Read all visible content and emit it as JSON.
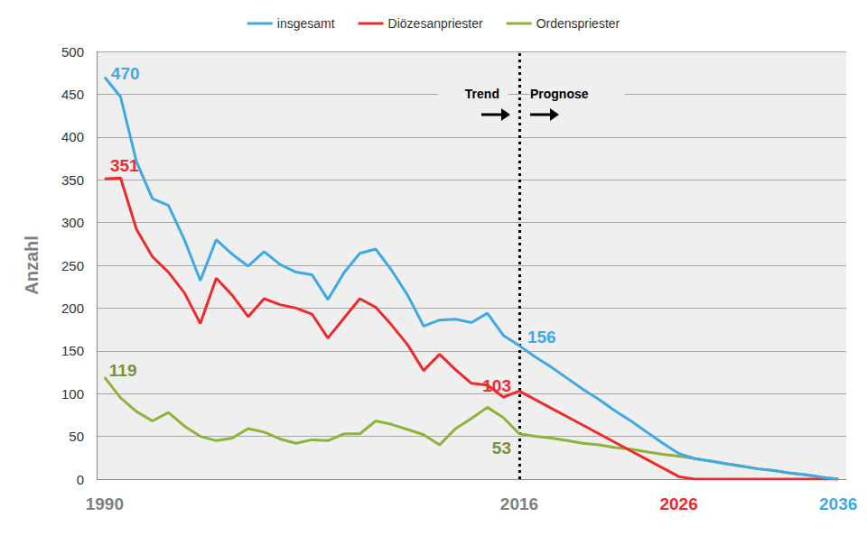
{
  "chart_data": {
    "type": "line",
    "x": [
      1990,
      1991,
      1992,
      1993,
      1994,
      1995,
      1996,
      1997,
      1998,
      1999,
      2000,
      2001,
      2002,
      2003,
      2004,
      2005,
      2006,
      2007,
      2008,
      2009,
      2010,
      2011,
      2012,
      2013,
      2014,
      2015,
      2016,
      2017,
      2018,
      2019,
      2020,
      2021,
      2022,
      2023,
      2024,
      2025,
      2026,
      2027,
      2028,
      2029,
      2030,
      2031,
      2032,
      2033,
      2034,
      2035,
      2036
    ],
    "series": [
      {
        "name": "insgesamt",
        "color": "#3fa9e5",
        "values": [
          470,
          447,
          371,
          328,
          320,
          280,
          232,
          280,
          263,
          249,
          266,
          251,
          242,
          239,
          210,
          241,
          264,
          269,
          244,
          215,
          179,
          186,
          187,
          183,
          194,
          168,
          156,
          143,
          131,
          118,
          105,
          93,
          80,
          68,
          55,
          42,
          30,
          24,
          21,
          18,
          15,
          12,
          10,
          7,
          5,
          2,
          0
        ]
      },
      {
        "name": "Diözesanpriester",
        "color": "#ee2a2a",
        "values": [
          351,
          352,
          292,
          260,
          242,
          218,
          182,
          235,
          215,
          190,
          211,
          204,
          200,
          193,
          165,
          188,
          211,
          201,
          180,
          157,
          127,
          146,
          128,
          112,
          110,
          96,
          103,
          93,
          83,
          73,
          63,
          53,
          43,
          33,
          23,
          13,
          3,
          0,
          0,
          0,
          0,
          0,
          0,
          0,
          0,
          0,
          0
        ]
      },
      {
        "name": "Ordenspriester",
        "color": "#8db33a",
        "values": [
          119,
          95,
          79,
          68,
          78,
          62,
          50,
          45,
          48,
          59,
          55,
          47,
          42,
          46,
          45,
          53,
          53,
          68,
          64,
          58,
          52,
          40,
          59,
          71,
          84,
          72,
          53,
          50,
          48,
          45,
          42,
          40,
          37,
          35,
          32,
          29,
          27,
          24,
          21,
          18,
          15,
          12,
          10,
          7,
          5,
          2,
          0
        ]
      }
    ],
    "xlim": [
      1989.5,
      2036.5
    ],
    "xticks": [
      1990,
      2016,
      2026,
      2036
    ],
    "ylim": [
      0,
      500
    ],
    "yticks": [
      0,
      50,
      100,
      150,
      200,
      250,
      300,
      350,
      400,
      450,
      500
    ],
    "y_label": "Anzahl",
    "grid": true,
    "legend": "top",
    "annotations": [
      {
        "series": "insgesamt",
        "x": 1990,
        "label": "470"
      },
      {
        "series": "Diözesanpriester",
        "x": 1990,
        "label": "351"
      },
      {
        "series": "Ordenspriester",
        "x": 1990,
        "label": "119"
      },
      {
        "series": "insgesamt",
        "x": 2016,
        "label": "156"
      },
      {
        "series": "Diözesanpriester",
        "x": 2016,
        "label": "103"
      },
      {
        "series": "Ordenspriester",
        "x": 2016,
        "label": "53"
      }
    ],
    "divider": {
      "x": 2016,
      "left_label": "Trend",
      "right_label": "Prognose"
    }
  }
}
